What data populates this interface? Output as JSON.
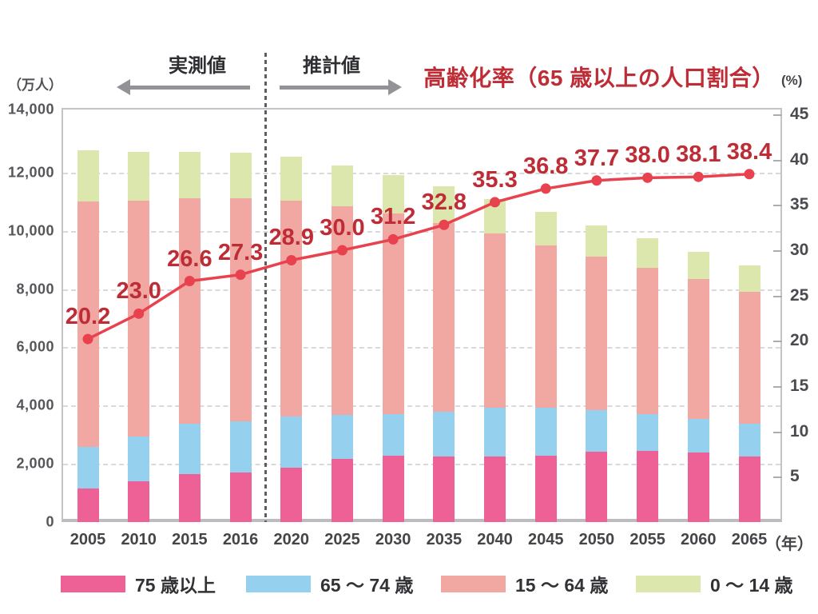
{
  "title": "高齢化率（65 歳以上の人口割合）",
  "annotations": {
    "measured_label": "実測値",
    "projected_label": "推計値"
  },
  "colors": {
    "title_red": "#BE2D36",
    "rate_line": "#E8424F",
    "rate_label": "#BE2D36",
    "bar_75plus": "#EE6196",
    "bar_65_74": "#95D0EE",
    "bar_15_64": "#F1A8A2",
    "bar_0_14": "#DCE7AD",
    "arrow_gray": "#939397",
    "axis_text_gray": "#55555A"
  },
  "chart_data": {
    "type": "bar+line",
    "title": "高齢化率（65 歳以上の人口割合）",
    "categories": [
      "2005",
      "2010",
      "2015",
      "2016",
      "2020",
      "2025",
      "2030",
      "2035",
      "2040",
      "2045",
      "2050",
      "2055",
      "2060",
      "2065"
    ],
    "series": [
      {
        "key": "age-75plus",
        "name": "75 歳以上",
        "color": "#EE6196",
        "values": [
          1164,
          1407,
          1646,
          1691,
          1872,
          2180,
          2288,
          2260,
          2239,
          2277,
          2417,
          2446,
          2387,
          2248
        ]
      },
      {
        "key": "age-65-74",
        "name": "65 ～ 74 歳",
        "color": "#95D0EE",
        "values": [
          1407,
          1517,
          1734,
          1768,
          1747,
          1497,
          1428,
          1522,
          1681,
          1643,
          1424,
          1258,
          1154,
          1133
        ]
      },
      {
        "key": "age-15-64",
        "name": "15 ～ 64 歳",
        "color": "#F1A8A2",
        "values": [
          8442,
          8103,
          7729,
          7656,
          7406,
          7170,
          6875,
          6494,
          5978,
          5584,
          5275,
          5028,
          4793,
          4529
        ]
      },
      {
        "key": "age-0-14",
        "name": "0 ～ 14 歳",
        "color": "#DCE7AD",
        "values": [
          1752,
          1680,
          1589,
          1578,
          1507,
          1407,
          1321,
          1246,
          1194,
          1138,
          1077,
          1012,
          951,
          898
        ]
      }
    ],
    "line": {
      "key": "aging-rate",
      "name": "高齢化率（65 歳以上の人口割合）",
      "color": "#E8424F",
      "label_color": "#BE2D36",
      "axis": "right",
      "values": [
        20.2,
        23.0,
        26.6,
        27.3,
        28.9,
        30.0,
        31.2,
        32.8,
        35.3,
        36.8,
        37.7,
        38.0,
        38.1,
        38.4
      ],
      "labels": [
        "20.2",
        "23.0",
        "26.6",
        "27.3",
        "28.9",
        "30.0",
        "31.2",
        "32.8",
        "35.3",
        "36.8",
        "37.7",
        "38.0",
        "38.1",
        "38.4"
      ]
    },
    "left_axis": {
      "label": "（万人）",
      "min": 0,
      "max": 14000,
      "ticks": [
        {
          "v": 0,
          "label": "0"
        },
        {
          "v": 2000,
          "label": "2,000"
        },
        {
          "v": 4000,
          "label": "4,000"
        },
        {
          "v": 6000,
          "label": "6,000"
        },
        {
          "v": 8000,
          "label": "8,000"
        },
        {
          "v": 10000,
          "label": "10,000"
        },
        {
          "v": 12000,
          "label": "12,000"
        },
        {
          "v": 14000,
          "label": "14,000"
        }
      ]
    },
    "right_axis": {
      "label": "(%)",
      "min": 0,
      "max": 45,
      "ticks": [
        {
          "v": 5,
          "label": "5"
        },
        {
          "v": 10,
          "label": "10"
        },
        {
          "v": 15,
          "label": "15"
        },
        {
          "v": 20,
          "label": "20"
        },
        {
          "v": 25,
          "label": "25"
        },
        {
          "v": 30,
          "label": "30"
        },
        {
          "v": 35,
          "label": "35"
        },
        {
          "v": 40,
          "label": "40"
        },
        {
          "v": 45,
          "label": "45"
        }
      ]
    },
    "x_axis_label": "（年）",
    "grid_values": [
      2000,
      4000,
      6000,
      8000,
      10000,
      12000
    ],
    "separator_after": "2016",
    "legend_position": "bottom"
  }
}
